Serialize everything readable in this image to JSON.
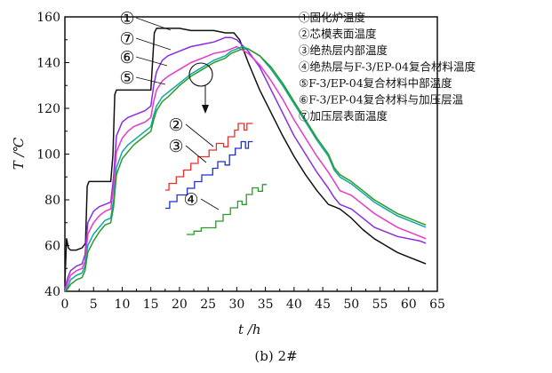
{
  "caption": "(b)  2#",
  "chart_data": {
    "type": "line",
    "xlabel": "t /h",
    "ylabel": "T /℃",
    "xlim": [
      0,
      65
    ],
    "ylim": [
      40,
      160
    ],
    "xticks": [
      0,
      5,
      10,
      15,
      20,
      25,
      30,
      35,
      40,
      45,
      50,
      55,
      60,
      65
    ],
    "yticks": [
      40,
      60,
      80,
      100,
      120,
      140,
      160
    ],
    "grid": false,
    "legend_position": "top-right",
    "legend": [
      "①固化炉温度",
      "②芯模表面温度",
      "③绝热层内部温度",
      "④绝热层与F-3/EP-04复合材料温度",
      "⑤F-3/EP-04复合材料中部温度",
      "⑥F-3/EP-04复合材料与加压层温",
      "⑦加压层表面温度"
    ],
    "curve_labels": [
      "①",
      "⑦",
      "⑥",
      "⑤"
    ],
    "inset_labels": [
      "②",
      "③",
      "④"
    ],
    "colors": {
      "s1": "#111111",
      "s2": "#e8302a",
      "s3": "#1f2fd0",
      "s4": "#2a9a2a",
      "s5": "#12a6a6",
      "s6": "#e639c9",
      "s7": "#8a2be2"
    },
    "series": [
      {
        "id": "s1",
        "x": [
          0,
          0.3,
          0.6,
          1,
          2,
          3,
          3.6,
          3.9,
          4.2,
          5,
          6,
          7,
          8,
          8.4,
          8.7,
          9,
          9.5,
          10,
          12,
          14,
          15,
          15.3,
          15.6,
          16,
          18,
          20,
          22,
          24,
          26,
          28,
          29.5,
          30.5,
          32,
          34,
          36,
          38,
          40,
          42,
          44,
          46,
          47,
          48,
          50,
          52,
          54,
          56,
          58,
          60,
          62,
          63
        ],
        "y": [
          44,
          63,
          59,
          58,
          58,
          59,
          61,
          86,
          88,
          88,
          88,
          88,
          88,
          100,
          126,
          128,
          128,
          128,
          128,
          128,
          128,
          140,
          153,
          155,
          155,
          155,
          154,
          154,
          154,
          153,
          153,
          150,
          140,
          128,
          118,
          108,
          99,
          91,
          84,
          78,
          77,
          76,
          72,
          67,
          63,
          60,
          57,
          55,
          53,
          52
        ]
      },
      {
        "id": "s7",
        "x": [
          0,
          0.5,
          1,
          2,
          3,
          3.5,
          4,
          5,
          6,
          7,
          8,
          8.5,
          9,
          10,
          11,
          12,
          13,
          14,
          15,
          15.5,
          16,
          17,
          18,
          20,
          22,
          24,
          26,
          28,
          29,
          30,
          32,
          34,
          36,
          38,
          40,
          42,
          44,
          46,
          47,
          48,
          50,
          52,
          54,
          56,
          58,
          60,
          62,
          63
        ],
        "y": [
          41,
          46,
          49,
          51,
          52,
          56,
          70,
          75,
          77,
          78,
          79,
          90,
          108,
          114,
          116,
          117,
          118,
          119,
          121,
          130,
          136,
          141,
          143,
          145,
          147,
          148,
          149,
          151,
          151,
          150,
          145,
          138,
          128,
          118,
          108,
          100,
          92,
          85,
          81,
          78,
          76,
          72,
          68,
          66,
          64,
          63,
          62,
          61
        ]
      },
      {
        "id": "s6",
        "x": [
          0,
          0.5,
          1,
          2,
          3,
          3.5,
          4,
          5,
          6,
          7,
          8,
          8.5,
          9,
          10,
          11,
          12,
          13,
          14,
          15,
          15.5,
          16,
          17,
          18,
          20,
          22,
          24,
          26,
          28,
          29,
          30,
          32,
          34,
          36,
          38,
          40,
          42,
          44,
          46,
          47,
          48,
          50,
          52,
          54,
          56,
          58,
          60,
          62,
          63
        ],
        "y": [
          40,
          44,
          47,
          49,
          50,
          53,
          65,
          70,
          73,
          75,
          76,
          86,
          101,
          107,
          110,
          112,
          113,
          114,
          116,
          123,
          128,
          132,
          134,
          137,
          140,
          142,
          144,
          145,
          146,
          147,
          144,
          139,
          132,
          124,
          115,
          107,
          99,
          92,
          88,
          84,
          82,
          78,
          74,
          71,
          68,
          66,
          64,
          63
        ]
      },
      {
        "id": "s5",
        "x": [
          0,
          0.5,
          1,
          2,
          3,
          3.5,
          4,
          5,
          6,
          7,
          8,
          8.5,
          9,
          10,
          11,
          12,
          13,
          14,
          15,
          15.5,
          16,
          17,
          18,
          20,
          22,
          24,
          26,
          28,
          29,
          30,
          31,
          32,
          34,
          36,
          38,
          40,
          42,
          44,
          46,
          47,
          48,
          50,
          52,
          54,
          56,
          58,
          60,
          62,
          63
        ],
        "y": [
          40,
          42,
          45,
          47,
          48,
          51,
          60,
          65,
          68,
          71,
          72,
          80,
          94,
          101,
          104,
          106,
          108,
          110,
          112,
          117,
          121,
          125,
          127,
          131,
          135,
          138,
          141,
          143,
          145,
          146,
          147,
          146,
          143,
          137,
          130,
          122,
          114,
          106,
          99,
          93,
          90,
          87,
          83,
          79,
          76,
          73,
          71,
          69,
          68
        ]
      },
      {
        "id": "s4",
        "x": [
          0,
          0.5,
          1,
          2,
          3,
          3.5,
          4,
          5,
          6,
          7,
          8,
          8.5,
          9,
          10,
          11,
          12,
          13,
          14,
          15,
          15.5,
          16,
          17,
          18,
          20,
          22,
          24,
          26,
          28,
          29,
          30,
          31,
          32,
          34,
          36,
          38,
          40,
          42,
          44,
          46,
          47,
          48,
          50,
          52,
          54,
          56,
          58,
          60,
          62,
          63
        ],
        "y": [
          40,
          41,
          43,
          45,
          46,
          49,
          57,
          62,
          66,
          69,
          70,
          77,
          91,
          98,
          101,
          104,
          106,
          108,
          110,
          115,
          119,
          123,
          125,
          130,
          134,
          137,
          140,
          142,
          144,
          145,
          146,
          146,
          143,
          138,
          131,
          123,
          115,
          107,
          100,
          94,
          91,
          88,
          84,
          80,
          77,
          74,
          72,
          70,
          69
        ]
      }
    ],
    "inset_series": [
      {
        "id": "s2",
        "steps": [
          [
            0,
            0
          ],
          [
            0.5,
            0
          ],
          [
            0.5,
            1
          ],
          [
            1.5,
            1
          ],
          [
            1.5,
            2
          ],
          [
            2.5,
            2
          ],
          [
            2.5,
            3
          ],
          [
            3.5,
            3
          ],
          [
            3.5,
            4
          ],
          [
            4.5,
            4
          ],
          [
            4.5,
            5
          ],
          [
            6,
            5
          ],
          [
            6,
            6
          ],
          [
            7,
            6
          ],
          [
            7,
            7
          ],
          [
            8,
            7
          ],
          [
            8,
            6.5
          ],
          [
            8.6,
            6.5
          ],
          [
            8.6,
            8
          ],
          [
            9.5,
            8
          ],
          [
            9.5,
            9
          ],
          [
            10,
            9
          ],
          [
            10,
            10
          ],
          [
            10.8,
            10
          ],
          [
            10.8,
            9
          ],
          [
            11.2,
            9
          ],
          [
            11.2,
            10
          ],
          [
            12,
            10
          ]
        ]
      },
      {
        "id": "s3",
        "steps": [
          [
            0,
            -1
          ],
          [
            0.6,
            -1
          ],
          [
            0.6,
            0
          ],
          [
            1.6,
            0
          ],
          [
            1.6,
            1
          ],
          [
            3,
            1
          ],
          [
            3,
            2
          ],
          [
            4,
            2
          ],
          [
            4,
            3
          ],
          [
            5,
            3
          ],
          [
            5,
            4
          ],
          [
            6.5,
            4
          ],
          [
            6.5,
            5
          ],
          [
            7.2,
            5
          ],
          [
            7.2,
            6
          ],
          [
            8.2,
            6
          ],
          [
            8.2,
            5.5
          ],
          [
            8.8,
            5.5
          ],
          [
            8.8,
            7
          ],
          [
            9.6,
            7
          ],
          [
            9.6,
            8
          ],
          [
            10.4,
            8
          ],
          [
            10.4,
            9
          ],
          [
            11,
            9
          ],
          [
            11,
            8
          ],
          [
            11.4,
            8
          ],
          [
            11.4,
            9
          ],
          [
            12,
            9
          ]
        ]
      },
      {
        "id": "s4",
        "steps": [
          [
            0,
            0
          ],
          [
            1,
            0
          ],
          [
            1,
            0.5
          ],
          [
            2,
            0.5
          ],
          [
            2,
            1
          ],
          [
            4,
            1
          ],
          [
            4,
            2
          ],
          [
            5,
            2
          ],
          [
            5,
            3
          ],
          [
            6,
            3
          ],
          [
            6,
            4
          ],
          [
            7,
            4
          ],
          [
            7,
            5
          ],
          [
            7.6,
            5
          ],
          [
            7.6,
            4.5
          ],
          [
            8.2,
            4.5
          ],
          [
            8.2,
            6
          ],
          [
            9,
            6
          ],
          [
            9,
            7
          ],
          [
            9.8,
            7
          ],
          [
            9.8,
            6.5
          ],
          [
            10.4,
            6.5
          ],
          [
            10.4,
            7.5
          ],
          [
            11,
            7.5
          ]
        ]
      }
    ]
  }
}
